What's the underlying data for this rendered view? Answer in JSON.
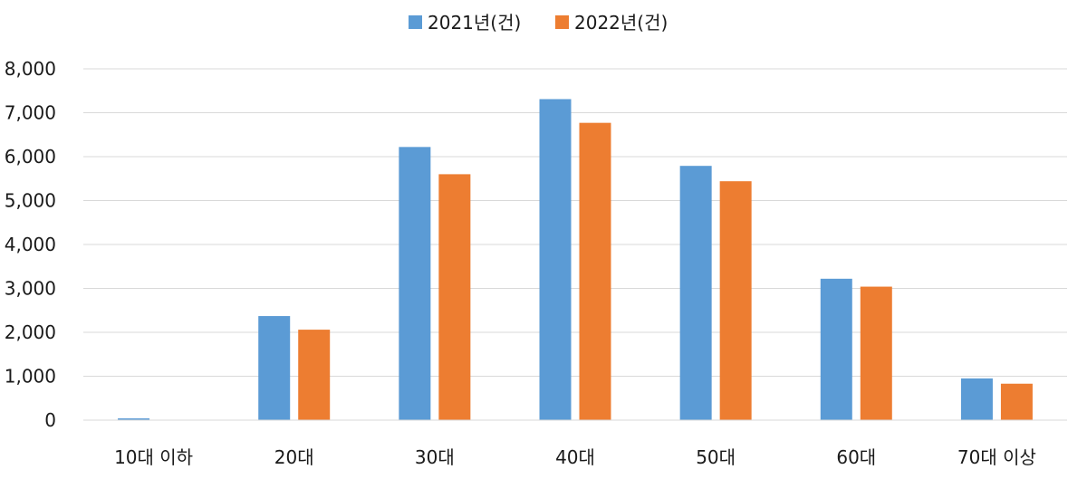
{
  "chart_data": {
    "type": "bar",
    "categories": [
      "10대 이하",
      "20대",
      "30대",
      "40대",
      "50대",
      "60대",
      "70대 이상"
    ],
    "series": [
      {
        "name": "2021년(건)",
        "color": "#5B9BD5",
        "values": [
          40,
          2370,
          6220,
          7310,
          5790,
          3220,
          950
        ]
      },
      {
        "name": "2022년(건)",
        "color": "#ED7D31",
        "values": [
          0,
          2060,
          5600,
          6770,
          5440,
          3040,
          830
        ]
      }
    ],
    "ylim": [
      0,
      8000
    ],
    "yticks": [
      "0",
      "1,000",
      "2,000",
      "3,000",
      "4,000",
      "5,000",
      "6,000",
      "7,000",
      "8,000"
    ],
    "ytick_values": [
      0,
      1000,
      2000,
      3000,
      4000,
      5000,
      6000,
      7000,
      8000
    ],
    "grid": true,
    "legend_position": "top-center"
  }
}
